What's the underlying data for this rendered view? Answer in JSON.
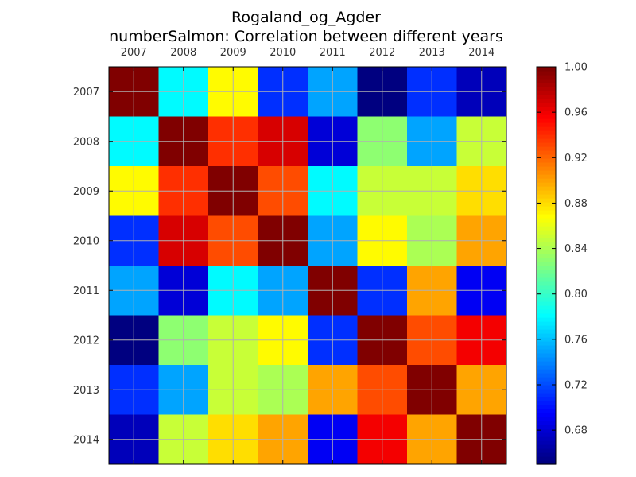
{
  "chart_data": {
    "type": "heatmap",
    "title": "Rogaland_og_Agder",
    "subtitle": "numberSalmon: Correlation between different years",
    "x_categories": [
      "2007",
      "2008",
      "2009",
      "2010",
      "2011",
      "2012",
      "2013",
      "2014"
    ],
    "y_categories": [
      "2007",
      "2008",
      "2009",
      "2010",
      "2011",
      "2012",
      "2013",
      "2014"
    ],
    "values": [
      [
        1.0,
        0.78,
        0.87,
        0.71,
        0.75,
        0.65,
        0.71,
        0.67
      ],
      [
        0.78,
        1.0,
        0.94,
        0.97,
        0.68,
        0.83,
        0.75,
        0.85
      ],
      [
        0.87,
        0.94,
        1.0,
        0.93,
        0.78,
        0.85,
        0.85,
        0.88
      ],
      [
        0.71,
        0.97,
        0.93,
        1.0,
        0.75,
        0.87,
        0.84,
        0.9
      ],
      [
        0.75,
        0.68,
        0.78,
        0.75,
        1.0,
        0.71,
        0.9,
        0.69
      ],
      [
        0.65,
        0.83,
        0.85,
        0.87,
        0.71,
        1.0,
        0.93,
        0.96
      ],
      [
        0.71,
        0.75,
        0.85,
        0.84,
        0.9,
        0.93,
        1.0,
        0.9
      ],
      [
        0.67,
        0.85,
        0.88,
        0.9,
        0.69,
        0.96,
        0.9,
        1.0
      ]
    ],
    "colormap": "jet",
    "color_range": [
      0.65,
      1.0
    ],
    "colorbar_ticks": [
      "0.68",
      "0.72",
      "0.76",
      "0.80",
      "0.84",
      "0.88",
      "0.92",
      "0.96",
      "1.00"
    ],
    "grid": true,
    "x_axis_position": "top"
  }
}
